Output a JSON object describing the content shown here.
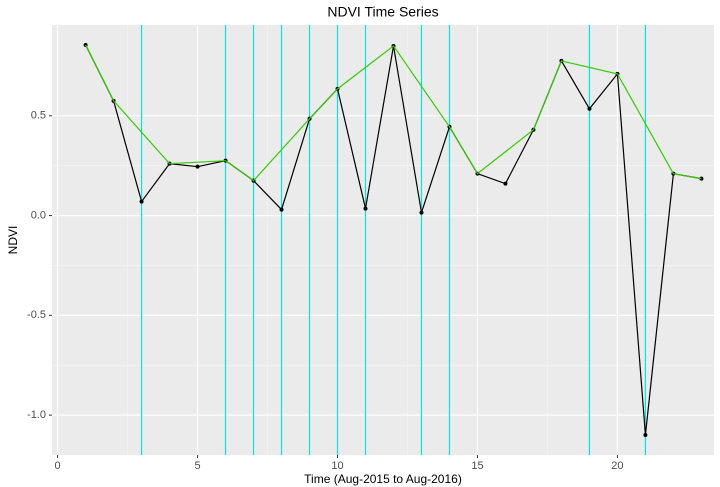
{
  "chart_data": {
    "type": "line",
    "title": "NDVI Time Series",
    "x_label": "Time (Aug-2015 to Aug-2016)",
    "y_label": "NDVI",
    "xlim": [
      -0.2,
      23.45
    ],
    "ylim": [
      -1.2,
      0.955
    ],
    "xticks": [
      0,
      5,
      10,
      15,
      20
    ],
    "yticks": [
      {
        "value": -1.0,
        "label": "-1.0"
      },
      -0.5,
      {
        "value": 0,
        "label": "0.0"
      },
      0.5
    ],
    "grid": true,
    "series": [
      {
        "color": "#000000",
        "points": true,
        "x": [
          1,
          2,
          3,
          4,
          5,
          6,
          7,
          8,
          9,
          10,
          11,
          12,
          13,
          14,
          15,
          16,
          17,
          18,
          19,
          20,
          21,
          22,
          23
        ],
        "values": [
          0.855,
          0.575,
          0.07,
          0.26,
          0.245,
          0.275,
          0.175,
          0.03,
          0.485,
          0.635,
          0.035,
          0.85,
          0.015,
          0.445,
          0.21,
          0.16,
          0.43,
          0.775,
          0.535,
          0.71,
          -1.1,
          0.21,
          0.185
        ]
      },
      {
        "color": "#33cc00",
        "points": false,
        "x": [
          1,
          2,
          4,
          6,
          7,
          9,
          10,
          12,
          14,
          15,
          17,
          18,
          20,
          22,
          23
        ],
        "values": [
          0.855,
          0.575,
          0.26,
          0.275,
          0.175,
          0.485,
          0.635,
          0.85,
          0.445,
          0.21,
          0.43,
          0.775,
          0.71,
          0.21,
          0.185
        ]
      }
    ],
    "vlines": {
      "color": "#00e5ee",
      "x": [
        3,
        6,
        7,
        8,
        9,
        10,
        11,
        13,
        14,
        19,
        21
      ]
    }
  }
}
